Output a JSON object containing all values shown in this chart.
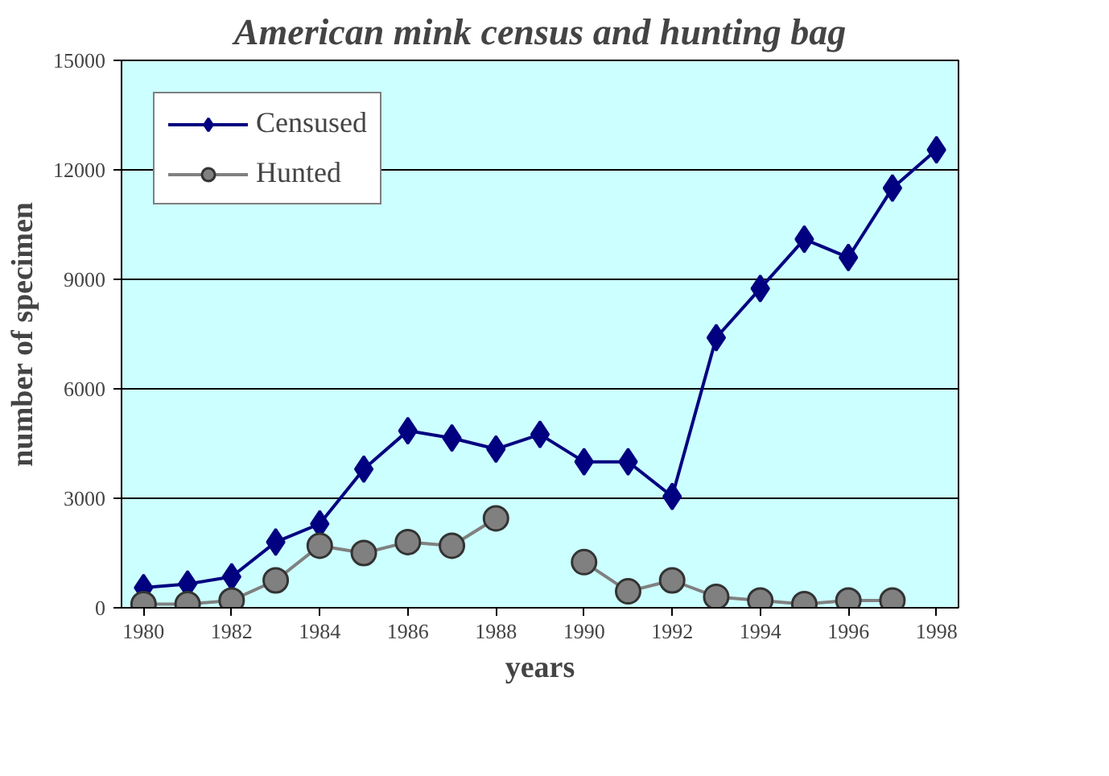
{
  "chart_data": {
    "type": "line",
    "title": "American mink census and hunting bag",
    "xlabel": "years",
    "ylabel": "number of specimen",
    "x": [
      1980,
      1981,
      1982,
      1983,
      1984,
      1985,
      1986,
      1987,
      1988,
      1989,
      1990,
      1991,
      1992,
      1993,
      1994,
      1995,
      1996,
      1997,
      1998
    ],
    "series": [
      {
        "name": "Censused",
        "color": "#000080",
        "marker": "diamond",
        "values": [
          550,
          650,
          850,
          1800,
          2300,
          3800,
          4850,
          4650,
          4350,
          4750,
          4000,
          4000,
          3050,
          7400,
          8750,
          10100,
          9600,
          11500,
          12550
        ]
      },
      {
        "name": "Hunted",
        "color": "#808080",
        "marker": "circle",
        "values": [
          100,
          100,
          200,
          750,
          1700,
          1500,
          1800,
          1700,
          2450,
          null,
          1250,
          450,
          750,
          300,
          200,
          100,
          200,
          200,
          null
        ]
      }
    ],
    "xlim": [
      1979.5,
      1998.5
    ],
    "xticks": [
      1980,
      1982,
      1984,
      1986,
      1988,
      1990,
      1992,
      1994,
      1996,
      1998
    ],
    "ylim": [
      0,
      15000
    ],
    "yticks": [
      0,
      3000,
      6000,
      9000,
      12000,
      15000
    ],
    "grid": "y",
    "legend": "top left",
    "line_style": "solid"
  }
}
